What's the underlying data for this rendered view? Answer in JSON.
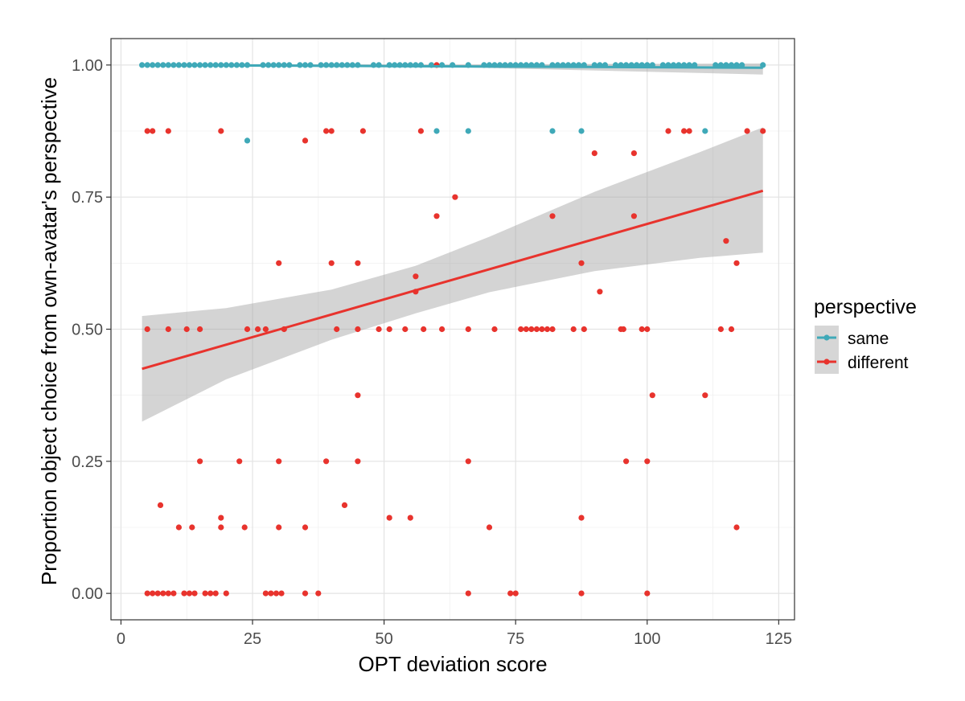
{
  "chart_data": {
    "type": "scatter",
    "xlabel": "OPT deviation score",
    "ylabel": "Proportion object choice from own-avatar's perspective",
    "xlim": [
      -1.9,
      128.0
    ],
    "ylim": [
      -0.05,
      1.05
    ],
    "x_ticks": [
      0,
      25,
      50,
      75,
      100,
      125
    ],
    "y_ticks": [
      0.0,
      0.25,
      0.5,
      0.75,
      1.0
    ],
    "x_tick_labels": [
      "0",
      "25",
      "50",
      "75",
      "100",
      "125"
    ],
    "y_tick_labels": [
      "0.00",
      "0.25",
      "0.50",
      "0.75",
      "1.00"
    ],
    "grid": true,
    "legend": {
      "title": "perspective",
      "position": "right",
      "entries": [
        "same",
        "different"
      ]
    },
    "series": [
      {
        "name": "same",
        "color": "#3fa9b8",
        "points": [
          [
            4,
            1.0
          ],
          [
            5,
            1.0
          ],
          [
            6,
            1.0
          ],
          [
            7,
            1.0
          ],
          [
            8,
            1.0
          ],
          [
            9,
            1.0
          ],
          [
            10,
            1.0
          ],
          [
            11,
            1.0
          ],
          [
            12,
            1.0
          ],
          [
            13,
            1.0
          ],
          [
            14,
            1.0
          ],
          [
            15,
            1.0
          ],
          [
            16,
            1.0
          ],
          [
            17,
            1.0
          ],
          [
            18,
            1.0
          ],
          [
            19,
            1.0
          ],
          [
            20,
            1.0
          ],
          [
            21,
            1.0
          ],
          [
            22,
            1.0
          ],
          [
            23,
            1.0
          ],
          [
            24,
            1.0
          ],
          [
            27,
            1.0
          ],
          [
            28,
            1.0
          ],
          [
            29,
            1.0
          ],
          [
            30,
            1.0
          ],
          [
            31,
            1.0
          ],
          [
            32,
            1.0
          ],
          [
            34,
            1.0
          ],
          [
            35,
            1.0
          ],
          [
            36,
            1.0
          ],
          [
            38,
            1.0
          ],
          [
            39,
            1.0
          ],
          [
            40,
            1.0
          ],
          [
            41,
            1.0
          ],
          [
            42,
            1.0
          ],
          [
            43,
            1.0
          ],
          [
            44,
            1.0
          ],
          [
            45,
            1.0
          ],
          [
            48,
            1.0
          ],
          [
            49,
            1.0
          ],
          [
            51,
            1.0
          ],
          [
            52,
            1.0
          ],
          [
            53,
            1.0
          ],
          [
            54,
            1.0
          ],
          [
            55,
            1.0
          ],
          [
            56,
            1.0
          ],
          [
            57,
            1.0
          ],
          [
            59,
            1.0
          ],
          [
            61,
            1.0
          ],
          [
            63,
            1.0
          ],
          [
            66,
            1.0
          ],
          [
            69,
            1.0
          ],
          [
            70,
            1.0
          ],
          [
            71,
            1.0
          ],
          [
            72,
            1.0
          ],
          [
            73,
            1.0
          ],
          [
            74,
            1.0
          ],
          [
            75,
            1.0
          ],
          [
            76,
            1.0
          ],
          [
            77,
            1.0
          ],
          [
            78,
            1.0
          ],
          [
            79,
            1.0
          ],
          [
            80,
            1.0
          ],
          [
            82,
            1.0
          ],
          [
            83,
            1.0
          ],
          [
            84,
            1.0
          ],
          [
            85,
            1.0
          ],
          [
            86,
            1.0
          ],
          [
            87,
            1.0
          ],
          [
            88,
            1.0
          ],
          [
            90,
            1.0
          ],
          [
            91,
            1.0
          ],
          [
            92,
            1.0
          ],
          [
            94,
            1.0
          ],
          [
            95,
            1.0
          ],
          [
            96,
            1.0
          ],
          [
            97,
            1.0
          ],
          [
            98,
            1.0
          ],
          [
            99,
            1.0
          ],
          [
            100,
            1.0
          ],
          [
            101,
            1.0
          ],
          [
            103,
            1.0
          ],
          [
            104,
            1.0
          ],
          [
            105,
            1.0
          ],
          [
            106,
            1.0
          ],
          [
            107,
            1.0
          ],
          [
            108,
            1.0
          ],
          [
            109,
            1.0
          ],
          [
            113,
            1.0
          ],
          [
            114,
            1.0
          ],
          [
            115,
            1.0
          ],
          [
            116,
            1.0
          ],
          [
            117,
            1.0
          ],
          [
            118,
            1.0
          ],
          [
            122,
            1.0
          ],
          [
            24,
            0.857
          ],
          [
            60,
            0.875
          ],
          [
            66,
            0.875
          ],
          [
            82,
            0.875
          ],
          [
            87.5,
            0.875
          ],
          [
            111,
            0.875
          ]
        ],
        "fit": {
          "x": [
            4,
            122
          ],
          "y": [
            1.0,
            0.995
          ]
        },
        "band": {
          "x": [
            4,
            63,
            122
          ],
          "lower": [
            0.999,
            0.996,
            0.982
          ],
          "upper": [
            1.002,
            1.001,
            1.003
          ]
        }
      },
      {
        "name": "different",
        "color": "#e8332d",
        "points": [
          [
            60,
            1.0
          ],
          [
            5,
            0.875
          ],
          [
            6,
            0.875
          ],
          [
            9,
            0.875
          ],
          [
            19,
            0.875
          ],
          [
            39,
            0.875
          ],
          [
            40,
            0.875
          ],
          [
            46,
            0.875
          ],
          [
            57,
            0.875
          ],
          [
            104,
            0.875
          ],
          [
            107,
            0.875
          ],
          [
            108,
            0.875
          ],
          [
            119,
            0.875
          ],
          [
            122,
            0.875
          ],
          [
            35,
            0.857
          ],
          [
            90,
            0.833
          ],
          [
            97.5,
            0.833
          ],
          [
            63.5,
            0.75
          ],
          [
            60,
            0.714
          ],
          [
            82,
            0.714
          ],
          [
            97.5,
            0.714
          ],
          [
            115,
            0.667
          ],
          [
            30,
            0.625
          ],
          [
            40,
            0.625
          ],
          [
            45,
            0.625
          ],
          [
            87.5,
            0.625
          ],
          [
            117,
            0.625
          ],
          [
            56,
            0.6
          ],
          [
            56,
            0.571
          ],
          [
            91,
            0.571
          ],
          [
            5,
            0.5
          ],
          [
            9,
            0.5
          ],
          [
            12.5,
            0.5
          ],
          [
            15,
            0.5
          ],
          [
            24,
            0.5
          ],
          [
            26,
            0.5
          ],
          [
            27.5,
            0.5
          ],
          [
            31,
            0.5
          ],
          [
            41,
            0.5
          ],
          [
            45,
            0.5
          ],
          [
            49,
            0.5
          ],
          [
            51,
            0.5
          ],
          [
            54,
            0.5
          ],
          [
            57.5,
            0.5
          ],
          [
            61,
            0.5
          ],
          [
            66,
            0.5
          ],
          [
            71,
            0.5
          ],
          [
            76,
            0.5
          ],
          [
            77,
            0.5
          ],
          [
            78,
            0.5
          ],
          [
            79,
            0.5
          ],
          [
            80,
            0.5
          ],
          [
            81,
            0.5
          ],
          [
            82,
            0.5
          ],
          [
            86,
            0.5
          ],
          [
            88,
            0.5
          ],
          [
            95,
            0.5
          ],
          [
            95.5,
            0.5
          ],
          [
            99,
            0.5
          ],
          [
            100,
            0.5
          ],
          [
            114,
            0.5
          ],
          [
            116,
            0.5
          ],
          [
            45,
            0.375
          ],
          [
            101,
            0.375
          ],
          [
            111,
            0.375
          ],
          [
            15,
            0.25
          ],
          [
            22.5,
            0.25
          ],
          [
            30,
            0.25
          ],
          [
            39,
            0.25
          ],
          [
            45,
            0.25
          ],
          [
            66,
            0.25
          ],
          [
            96,
            0.25
          ],
          [
            100,
            0.25
          ],
          [
            7.5,
            0.167
          ],
          [
            42.5,
            0.167
          ],
          [
            19,
            0.143
          ],
          [
            51,
            0.143
          ],
          [
            55,
            0.143
          ],
          [
            87.5,
            0.143
          ],
          [
            11,
            0.125
          ],
          [
            13.5,
            0.125
          ],
          [
            19,
            0.125
          ],
          [
            23.5,
            0.125
          ],
          [
            30,
            0.125
          ],
          [
            35,
            0.125
          ],
          [
            70,
            0.125
          ],
          [
            117,
            0.125
          ],
          [
            5,
            0.0
          ],
          [
            6,
            0.0
          ],
          [
            7,
            0.0
          ],
          [
            8,
            0.0
          ],
          [
            9,
            0.0
          ],
          [
            10,
            0.0
          ],
          [
            12,
            0.0
          ],
          [
            13,
            0.0
          ],
          [
            14,
            0.0
          ],
          [
            16,
            0.0
          ],
          [
            17,
            0.0
          ],
          [
            18,
            0.0
          ],
          [
            20,
            0.0
          ],
          [
            27.5,
            0.0
          ],
          [
            28.5,
            0.0
          ],
          [
            29.5,
            0.0
          ],
          [
            30.5,
            0.0
          ],
          [
            35,
            0.0
          ],
          [
            37.5,
            0.0
          ],
          [
            66,
            0.0
          ],
          [
            74,
            0.0
          ],
          [
            75,
            0.0
          ],
          [
            87.5,
            0.0
          ],
          [
            100,
            0.0
          ]
        ],
        "fit": {
          "x": [
            4,
            122
          ],
          "y": [
            0.425,
            0.762
          ]
        },
        "band": {
          "x": [
            4,
            20,
            40,
            56,
            70,
            90,
            110,
            122
          ],
          "lower": [
            0.325,
            0.405,
            0.48,
            0.53,
            0.57,
            0.61,
            0.635,
            0.645
          ],
          "upper": [
            0.525,
            0.54,
            0.575,
            0.62,
            0.675,
            0.76,
            0.835,
            0.882
          ]
        }
      }
    ]
  }
}
